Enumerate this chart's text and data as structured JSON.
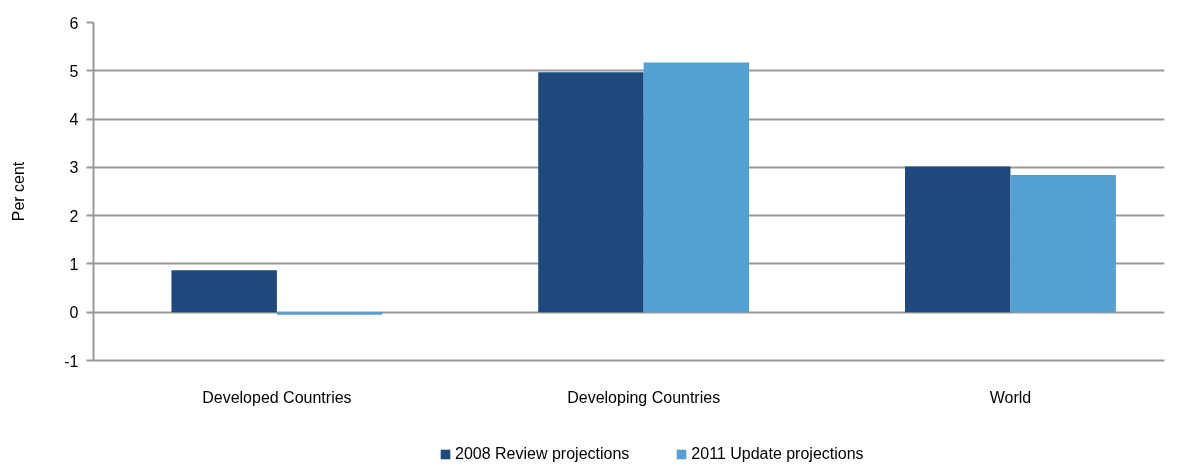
{
  "chart_data": {
    "type": "bar",
    "ylabel": "Per cent",
    "categories": [
      "Developed Countries",
      "Developing Countries",
      "World"
    ],
    "series": [
      {
        "name": "2008 Review projections",
        "color": "#1f497d",
        "values": [
          0.87,
          4.97,
          3.02
        ]
      },
      {
        "name": "2011 Update projections",
        "color": "#55a0d3",
        "values": [
          -0.05,
          5.17,
          2.84
        ]
      }
    ],
    "ylim": [
      -1,
      6
    ],
    "yticks": [
      -1,
      0,
      1,
      2,
      3,
      4,
      5,
      6
    ],
    "grid": "y",
    "legend": "bottom"
  }
}
